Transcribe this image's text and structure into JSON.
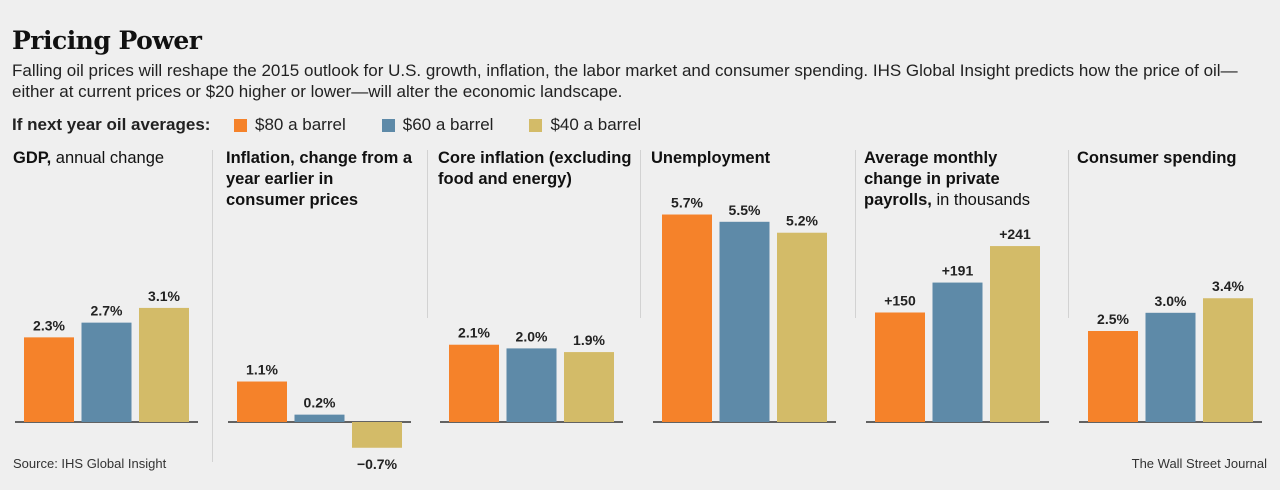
{
  "title": "Pricing Power",
  "subtitle": "Falling oil prices will reshape the 2015 outlook for U.S. growth, inflation, the labor market and consumer spending. IHS Global Insight predicts how the price of oil—either at current prices or $20 higher or lower—will alter the economic landscape.",
  "legend": {
    "lead": "If next year oil averages:",
    "items": [
      {
        "label": "$80 a barrel",
        "color": "#f5822a"
      },
      {
        "label": "$60 a barrel",
        "color": "#5e8aa8"
      },
      {
        "label": "$40 a barrel",
        "color": "#d3bb68"
      }
    ]
  },
  "source": "Source: IHS Global Insight",
  "credit": "The Wall Street Journal",
  "chart_data": [
    {
      "type": "bar",
      "title_bold": "GDP,",
      "title_light": " annual change",
      "categories": [
        "$80 a barrel",
        "$60 a barrel",
        "$40 a barrel"
      ],
      "values": [
        2.3,
        2.7,
        3.1
      ],
      "labels": [
        "2.3%",
        "2.7%",
        "3.1%"
      ],
      "unit": "%"
    },
    {
      "type": "bar",
      "title_bold": "Inflation, change from a year earlier in consumer prices",
      "title_light": "",
      "categories": [
        "$80 a barrel",
        "$60 a barrel",
        "$40 a barrel"
      ],
      "values": [
        1.1,
        0.2,
        -0.7
      ],
      "labels": [
        "1.1%",
        "0.2%",
        "−0.7%"
      ],
      "unit": "%"
    },
    {
      "type": "bar",
      "title_bold": "Core inflation (excluding food and energy)",
      "title_light": "",
      "categories": [
        "$80 a barrel",
        "$60 a barrel",
        "$40 a barrel"
      ],
      "values": [
        2.1,
        2.0,
        1.9
      ],
      "labels": [
        "2.1%",
        "2.0%",
        "1.9%"
      ],
      "unit": "%"
    },
    {
      "type": "bar",
      "title_bold": "Unemployment",
      "title_light": "",
      "categories": [
        "$80 a barrel",
        "$60 a barrel",
        "$40 a barrel"
      ],
      "values": [
        5.7,
        5.5,
        5.2
      ],
      "labels": [
        "5.7%",
        "5.5%",
        "5.2%"
      ],
      "unit": "%"
    },
    {
      "type": "bar",
      "title_bold": "Average monthly change in private payrolls,",
      "title_light": " in thousands",
      "categories": [
        "$80 a barrel",
        "$60 a barrel",
        "$40 a barrel"
      ],
      "values": [
        150,
        191,
        241
      ],
      "labels": [
        "+150",
        "+191",
        "+241"
      ],
      "unit": "thousands"
    },
    {
      "type": "bar",
      "title_bold": "Consumer spending",
      "title_light": "",
      "categories": [
        "$80 a barrel",
        "$60 a barrel",
        "$40 a barrel"
      ],
      "values": [
        2.5,
        3.0,
        3.4
      ],
      "labels": [
        "2.5%",
        "3.0%",
        "3.4%"
      ],
      "unit": "%"
    }
  ]
}
